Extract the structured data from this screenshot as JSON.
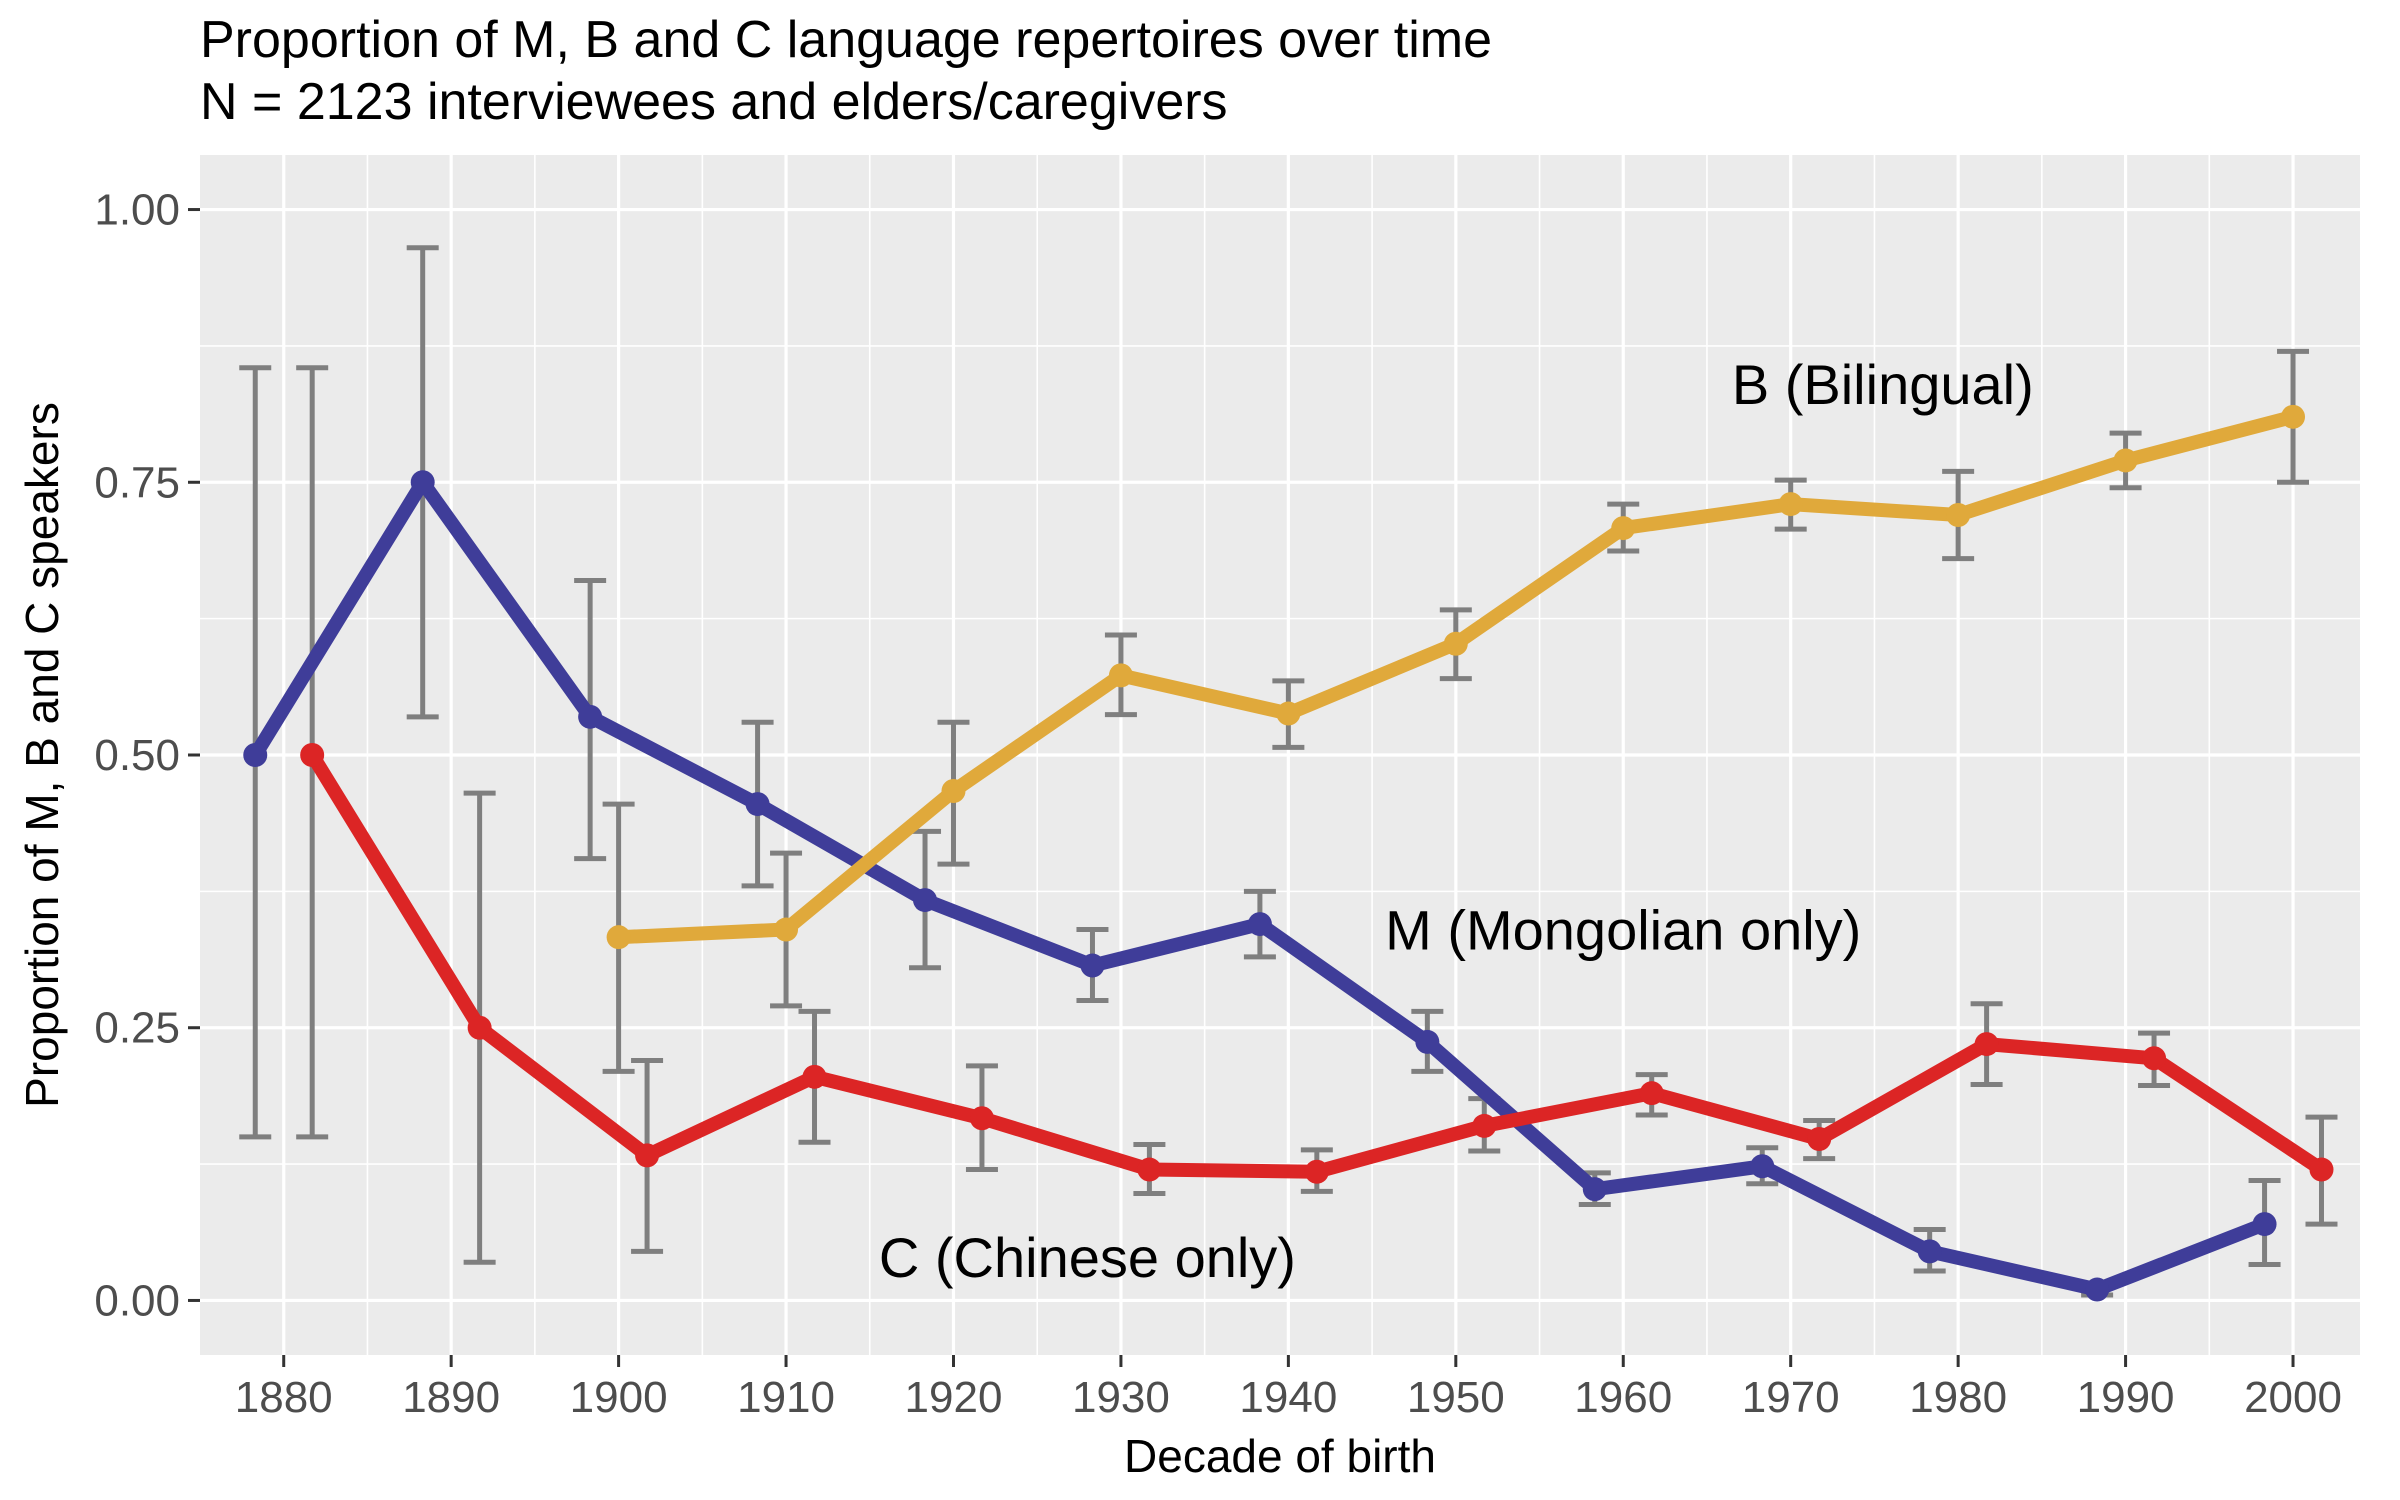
{
  "chart_data": {
    "type": "line",
    "title": "Proportion of M, B and C language repertoires over time",
    "subtitle": "N = 2123 interviewees and elders/caregivers",
    "xlabel": "Decade of birth",
    "ylabel": "Proportion of M, B and C speakers",
    "xlim": [
      1875,
      2004
    ],
    "ylim": [
      -0.05,
      1.05
    ],
    "x_ticks": [
      1880,
      1890,
      1900,
      1910,
      1920,
      1930,
      1940,
      1950,
      1960,
      1970,
      1980,
      1990,
      2000
    ],
    "x_tick_labels": [
      "1880",
      "1890",
      "1900",
      "1910",
      "1920",
      "1930",
      "1940",
      "1950",
      "1960",
      "1970",
      "1980",
      "1990",
      "2000"
    ],
    "y_ticks": [
      0,
      0.25,
      0.5,
      0.75,
      1.0
    ],
    "y_tick_labels": [
      "0.00",
      "0.25",
      "0.50",
      "0.75",
      "1.00"
    ],
    "grid": true,
    "legend": "none (direct labels)",
    "series": [
      {
        "name": "M (Mongolian only)",
        "color": "#3f3d99",
        "points": [
          {
            "x": 1878.3,
            "y": 0.5,
            "lo": 0.15,
            "hi": 0.855
          },
          {
            "x": 1888.3,
            "y": 0.75,
            "lo": 0.535,
            "hi": 0.965
          },
          {
            "x": 1898.3,
            "y": 0.535,
            "lo": 0.405,
            "hi": 0.66
          },
          {
            "x": 1908.3,
            "y": 0.455,
            "lo": 0.38,
            "hi": 0.53
          },
          {
            "x": 1918.3,
            "y": 0.367,
            "lo": 0.305,
            "hi": 0.43
          },
          {
            "x": 1928.3,
            "y": 0.307,
            "lo": 0.275,
            "hi": 0.34
          },
          {
            "x": 1938.3,
            "y": 0.345,
            "lo": 0.315,
            "hi": 0.375
          },
          {
            "x": 1948.3,
            "y": 0.237,
            "lo": 0.21,
            "hi": 0.265
          },
          {
            "x": 1958.3,
            "y": 0.102,
            "lo": 0.088,
            "hi": 0.117
          },
          {
            "x": 1968.3,
            "y": 0.123,
            "lo": 0.107,
            "hi": 0.14
          },
          {
            "x": 1978.3,
            "y": 0.045,
            "lo": 0.027,
            "hi": 0.065
          },
          {
            "x": 1988.3,
            "y": 0.01,
            "lo": 0.005,
            "hi": 0.015
          },
          {
            "x": 1998.3,
            "y": 0.07,
            "lo": 0.033,
            "hi": 0.11
          }
        ]
      },
      {
        "name": "B (Bilingual)",
        "color": "#e0a93b",
        "points": [
          {
            "x": 1900,
            "y": 0.333,
            "lo": 0.21,
            "hi": 0.455
          },
          {
            "x": 1910,
            "y": 0.34,
            "lo": 0.27,
            "hi": 0.41
          },
          {
            "x": 1920,
            "y": 0.467,
            "lo": 0.4,
            "hi": 0.53
          },
          {
            "x": 1930,
            "y": 0.573,
            "lo": 0.537,
            "hi": 0.61
          },
          {
            "x": 1940,
            "y": 0.538,
            "lo": 0.507,
            "hi": 0.568
          },
          {
            "x": 1950,
            "y": 0.602,
            "lo": 0.57,
            "hi": 0.633
          },
          {
            "x": 1960,
            "y": 0.708,
            "lo": 0.687,
            "hi": 0.73
          },
          {
            "x": 1970,
            "y": 0.73,
            "lo": 0.707,
            "hi": 0.752
          },
          {
            "x": 1980,
            "y": 0.72,
            "lo": 0.68,
            "hi": 0.76
          },
          {
            "x": 1990,
            "y": 0.77,
            "lo": 0.745,
            "hi": 0.795
          },
          {
            "x": 2000,
            "y": 0.81,
            "lo": 0.75,
            "hi": 0.87
          }
        ]
      },
      {
        "name": "C (Chinese only)",
        "color": "#dc2525",
        "points": [
          {
            "x": 1881.7,
            "y": 0.5,
            "lo": 0.15,
            "hi": 0.855
          },
          {
            "x": 1891.7,
            "y": 0.25,
            "lo": 0.035,
            "hi": 0.465
          },
          {
            "x": 1901.7,
            "y": 0.133,
            "lo": 0.045,
            "hi": 0.22
          },
          {
            "x": 1911.7,
            "y": 0.205,
            "lo": 0.145,
            "hi": 0.265
          },
          {
            "x": 1921.7,
            "y": 0.167,
            "lo": 0.12,
            "hi": 0.215
          },
          {
            "x": 1931.7,
            "y": 0.12,
            "lo": 0.098,
            "hi": 0.143
          },
          {
            "x": 1941.7,
            "y": 0.118,
            "lo": 0.1,
            "hi": 0.138
          },
          {
            "x": 1951.7,
            "y": 0.16,
            "lo": 0.137,
            "hi": 0.185
          },
          {
            "x": 1961.7,
            "y": 0.19,
            "lo": 0.17,
            "hi": 0.207
          },
          {
            "x": 1971.7,
            "y": 0.148,
            "lo": 0.13,
            "hi": 0.165
          },
          {
            "x": 1981.7,
            "y": 0.235,
            "lo": 0.198,
            "hi": 0.272
          },
          {
            "x": 1991.7,
            "y": 0.222,
            "lo": 0.197,
            "hi": 0.245
          },
          {
            "x": 2001.7,
            "y": 0.12,
            "lo": 0.07,
            "hi": 0.168
          }
        ]
      }
    ],
    "annotations": [
      {
        "text": "B (Bilingual)",
        "series": "B (Bilingual)",
        "x": 1975.5,
        "y": 0.84
      },
      {
        "text": "M (Mongolian only)",
        "series": "M (Mongolian only)",
        "x": 1960,
        "y": 0.34
      },
      {
        "text": "C (Chinese only)",
        "series": "C (Chinese only)",
        "x": 1928,
        "y": 0.04
      }
    ],
    "error_bar_color": "#7f7f7f",
    "panel_background": "#ebebeb",
    "grid_color": "#ffffff"
  }
}
